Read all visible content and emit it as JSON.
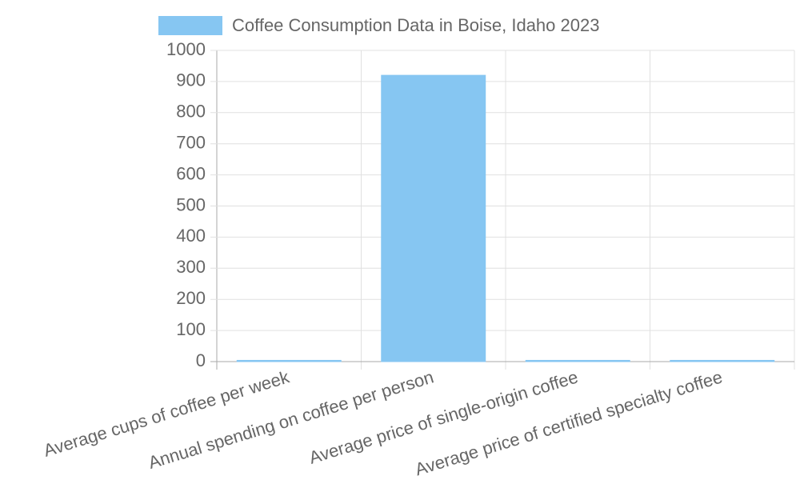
{
  "chart_data": {
    "type": "bar",
    "categories": [
      "Average cups of coffee per week",
      "Annual spending on coffee per person",
      "Average price of single-origin coffee",
      "Average price of certified specialty coffee"
    ],
    "series": [
      {
        "name": "Coffee Consumption Data in Boise, Idaho 2023",
        "color": "#86c6f2",
        "values": [
          4,
          920,
          4,
          4
        ]
      }
    ],
    "ylim": [
      0,
      1000
    ],
    "yticks": [
      0,
      100,
      200,
      300,
      400,
      500,
      600,
      700,
      800,
      900,
      1000
    ],
    "grid": true,
    "legend": "top"
  }
}
